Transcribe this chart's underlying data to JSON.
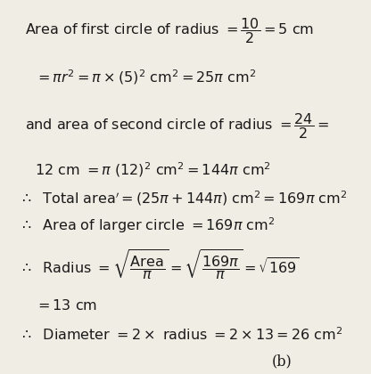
{
  "bg_color": "#f0ede4",
  "text_color": "#1a1a1a",
  "figsize": [
    4.16,
    4.2
  ],
  "dpi": 100,
  "fs": 11.5,
  "fs_math": 12.5
}
